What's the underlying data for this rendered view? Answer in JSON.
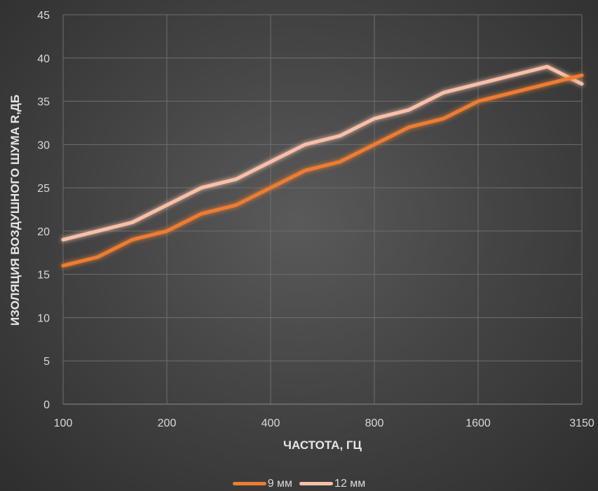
{
  "chart_data": {
    "type": "line",
    "xlabel": "ЧАСТОТА, ГЦ",
    "ylabel": "ИЗОЛЯЦИЯ ВОЗДУШНОГО ШУМА R,ДБ",
    "ylim": [
      0,
      45
    ],
    "yticks": [
      "0",
      "5",
      "10",
      "15",
      "20",
      "25",
      "30",
      "35",
      "40",
      "45"
    ],
    "xtick_labels": [
      "100",
      "200",
      "400",
      "800",
      "1600",
      "3150"
    ],
    "x": [
      100,
      125,
      160,
      200,
      250,
      315,
      400,
      500,
      630,
      800,
      1000,
      1250,
      1600,
      2000,
      2500,
      3150
    ],
    "grid": true,
    "legend_position": "bottom",
    "series": [
      {
        "name": "9 мм",
        "color": "#ed7d31",
        "values": [
          16,
          17,
          19,
          20,
          22,
          23,
          25,
          27,
          28,
          30,
          32,
          33,
          35,
          36,
          37,
          38
        ]
      },
      {
        "name": "12 мм",
        "color": "#f8c0a8",
        "values": [
          19,
          20,
          21,
          23,
          25,
          26,
          28,
          30,
          31,
          33,
          34,
          36,
          37,
          38,
          39,
          37
        ]
      }
    ]
  }
}
